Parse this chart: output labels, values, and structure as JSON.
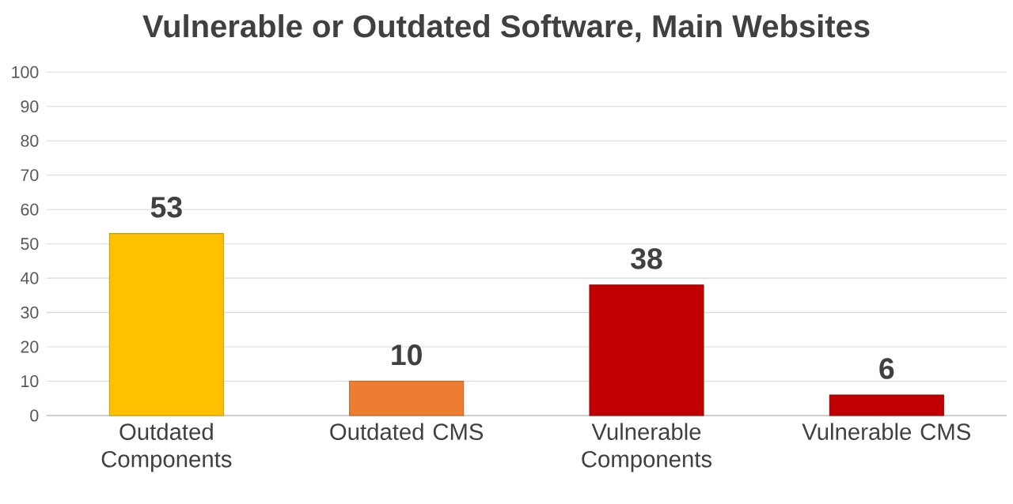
{
  "chart_data": {
    "type": "bar",
    "title": "Vulnerable or Outdated Software, Main Websites",
    "categories": [
      "Outdated Components",
      "Outdated CMS",
      "Vulnerable Components",
      "Vulnerable CMS"
    ],
    "values": [
      53,
      10,
      38,
      6
    ],
    "colors": [
      "#ffc000",
      "#ed7d31",
      "#c00000",
      "#c00000"
    ],
    "ylim": [
      0,
      100
    ],
    "yticks": [
      0,
      10,
      20,
      30,
      40,
      50,
      60,
      70,
      80,
      90,
      100
    ],
    "grid": "y",
    "data_labels": true
  }
}
